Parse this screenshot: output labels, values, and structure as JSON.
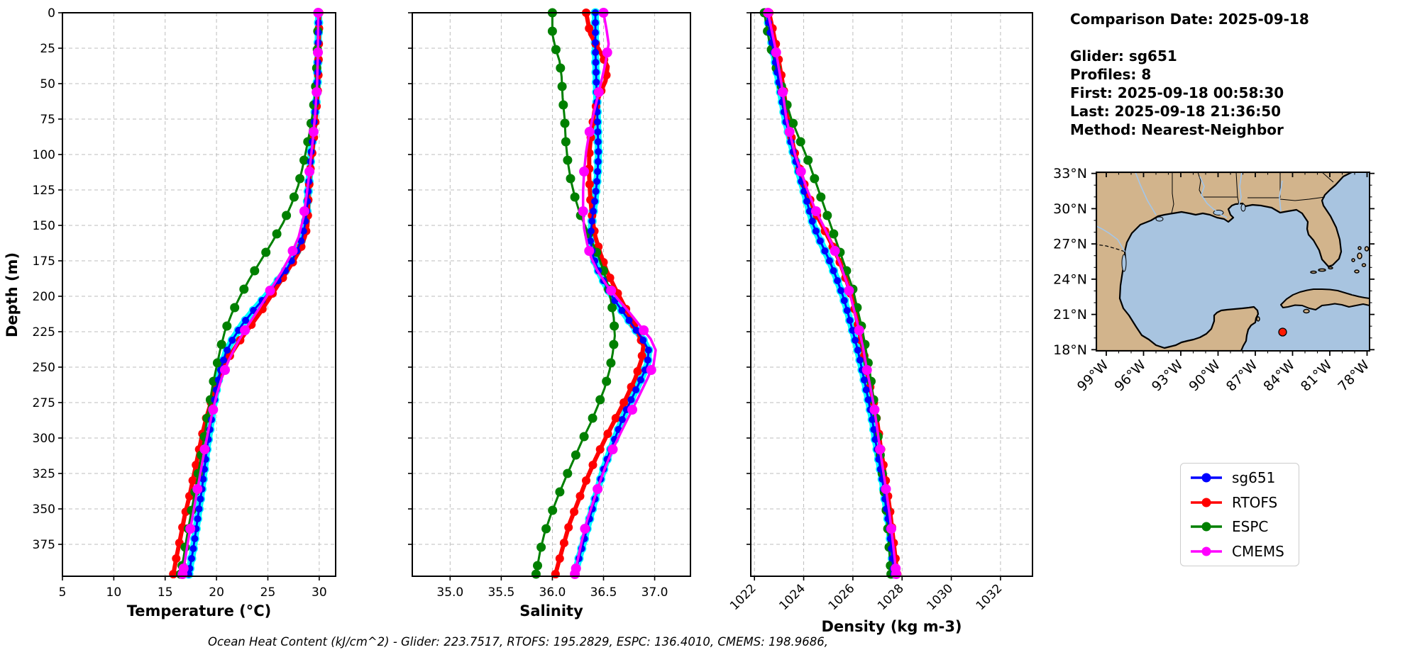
{
  "info_panel": {
    "comparison_date": "Comparison Date: 2025-09-18",
    "glider": "Glider: sg651",
    "profiles": "Profiles: 8",
    "first": "First: 2025-09-18 00:58:30",
    "last": "Last: 2025-09-18 21:36:50",
    "method": "Method: Nearest-Neighbor"
  },
  "footer": {
    "ohc_line": "Ocean Heat Content (kJ/cm^2) - Glider: 223.7517,  RTOFS: 195.2829,  ESPC: 136.4010,  CMEMS: 198.9686,"
  },
  "legend": {
    "items": [
      {
        "label": "sg651",
        "color": "#0000ff"
      },
      {
        "label": "RTOFS",
        "color": "#ff0000"
      },
      {
        "label": "ESPC",
        "color": "#008000"
      },
      {
        "label": "CMEMS",
        "color": "#ff00ff"
      }
    ]
  },
  "chart_data": [
    {
      "type": "line",
      "xlabel": "Temperature (°C)",
      "ylabel": "Depth (m)",
      "xlim": [
        5,
        31.6
      ],
      "ylim": [
        0,
        397.5
      ],
      "y_inverted": true,
      "grid": true,
      "xticks": [
        5,
        10,
        15,
        20,
        25,
        30
      ],
      "yticks": [
        0,
        25,
        50,
        75,
        100,
        125,
        150,
        175,
        200,
        225,
        250,
        275,
        300,
        325,
        350,
        375
      ],
      "series": [
        {
          "name": "sg651",
          "color": "#0000ff",
          "halo_color": "#00ffff",
          "depths": [
            0,
            20,
            40,
            55,
            70,
            85,
            100,
            115,
            128,
            140,
            150,
            160,
            170,
            180,
            190,
            200,
            210,
            220,
            230,
            240,
            252,
            265,
            278,
            292,
            306,
            320,
            335,
            350,
            365,
            380,
            396
          ],
          "values": [
            29.95,
            29.9,
            29.85,
            29.8,
            29.6,
            29.4,
            29.2,
            29.05,
            28.9,
            28.8,
            28.6,
            28.3,
            27.7,
            26.9,
            25.9,
            24.8,
            23.6,
            22.5,
            21.6,
            20.9,
            20.4,
            20.0,
            19.7,
            19.4,
            19.1,
            18.85,
            18.6,
            18.3,
            18.0,
            17.7,
            17.3
          ]
        },
        {
          "name": "RTOFS",
          "color": "#ff0000",
          "depths": [
            0,
            25,
            50,
            70,
            90,
            110,
            128,
            142,
            150,
            158,
            166,
            174,
            182,
            192,
            202,
            212,
            222,
            232,
            242,
            252,
            262,
            274,
            286,
            298,
            312,
            326,
            340,
            355,
            370,
            384,
            396
          ],
          "values": [
            30.0,
            29.95,
            29.9,
            29.7,
            29.45,
            29.15,
            28.95,
            28.9,
            28.85,
            28.6,
            28.2,
            27.6,
            26.9,
            26.0,
            25.1,
            24.2,
            23.2,
            22.2,
            21.3,
            20.6,
            20.0,
            19.5,
            19.0,
            18.6,
            18.2,
            17.8,
            17.4,
            16.9,
            16.5,
            16.1,
            15.8
          ]
        },
        {
          "name": "ESPC",
          "color": "#008000",
          "depths": [
            0,
            20,
            40,
            58,
            72,
            85,
            98,
            110,
            122,
            135,
            148,
            162,
            175,
            188,
            200,
            212,
            225,
            238,
            250,
            262,
            275,
            288,
            300,
            315,
            332,
            350,
            368,
            384,
            396
          ],
          "values": [
            29.9,
            29.85,
            29.75,
            29.6,
            29.35,
            29.05,
            28.7,
            28.35,
            27.95,
            27.3,
            26.5,
            25.4,
            24.3,
            23.2,
            22.3,
            21.5,
            20.8,
            20.35,
            20.0,
            19.65,
            19.35,
            19.05,
            18.8,
            18.45,
            18.05,
            17.6,
            17.15,
            16.8,
            16.5
          ]
        },
        {
          "name": "CMEMS",
          "color": "#ff00ff",
          "depths": [
            0,
            25,
            50,
            72,
            92,
            112,
            130,
            145,
            158,
            170,
            182,
            195,
            208,
            220,
            232,
            245,
            258,
            270,
            282,
            295,
            310,
            326,
            342,
            358,
            374,
            388,
            396
          ],
          "values": [
            29.9,
            29.88,
            29.8,
            29.6,
            29.35,
            29.05,
            28.75,
            28.45,
            28.0,
            27.3,
            26.4,
            25.3,
            24.2,
            23.1,
            22.1,
            21.2,
            20.5,
            20.0,
            19.6,
            19.2,
            18.8,
            18.4,
            18.0,
            17.6,
            17.2,
            16.9,
            16.7
          ]
        }
      ]
    },
    {
      "type": "line",
      "xlabel": "Salinity",
      "ylabel": "Depth (m)",
      "xlim": [
        34.63,
        37.35
      ],
      "ylim": [
        0,
        397.5
      ],
      "y_inverted": true,
      "grid": true,
      "xticks": [
        35.0,
        35.5,
        36.0,
        36.5,
        37.0
      ],
      "yticks": [
        0,
        25,
        50,
        75,
        100,
        125,
        150,
        175,
        200,
        225,
        250,
        275,
        300,
        325,
        350,
        375
      ],
      "series": [
        {
          "name": "sg651",
          "color": "#0000ff",
          "halo_color": "#00ffff",
          "depths": [
            0,
            25,
            50,
            75,
            100,
            115,
            130,
            145,
            160,
            172,
            182,
            192,
            202,
            212,
            222,
            230,
            238,
            248,
            258,
            270,
            282,
            295,
            308,
            320,
            332,
            345,
            358,
            372,
            385,
            396
          ],
          "values": [
            36.42,
            36.42,
            36.43,
            36.44,
            36.45,
            36.44,
            36.42,
            36.39,
            36.37,
            36.4,
            36.45,
            36.52,
            36.6,
            36.7,
            36.8,
            36.88,
            36.94,
            36.93,
            36.87,
            36.79,
            36.71,
            36.64,
            36.57,
            36.51,
            36.46,
            36.41,
            36.36,
            36.31,
            36.26,
            36.22
          ]
        },
        {
          "name": "RTOFS",
          "color": "#ff0000",
          "depths": [
            0,
            15,
            28,
            38,
            48,
            58,
            70,
            85,
            100,
            115,
            130,
            145,
            158,
            170,
            182,
            194,
            205,
            216,
            226,
            235,
            245,
            258,
            272,
            286,
            300,
            315,
            330,
            345,
            360,
            375,
            388,
            396
          ],
          "values": [
            36.33,
            36.37,
            36.47,
            36.54,
            36.52,
            36.46,
            36.41,
            36.38,
            36.36,
            36.36,
            36.37,
            36.39,
            36.42,
            36.47,
            36.53,
            36.61,
            36.69,
            36.77,
            36.84,
            36.89,
            36.87,
            36.81,
            36.72,
            36.62,
            36.52,
            36.42,
            36.33,
            36.25,
            36.17,
            36.11,
            36.06,
            36.03
          ]
        },
        {
          "name": "ESPC",
          "color": "#008000",
          "depths": [
            0,
            15,
            25,
            34,
            45,
            60,
            75,
            90,
            105,
            118,
            130,
            142,
            152,
            162,
            172,
            182,
            192,
            202,
            215,
            228,
            240,
            252,
            265,
            278,
            290,
            302,
            315,
            328,
            342,
            355,
            368,
            380,
            396
          ],
          "values": [
            36.0,
            36.0,
            36.03,
            36.07,
            36.09,
            36.1,
            36.12,
            36.13,
            36.15,
            36.18,
            36.22,
            36.27,
            36.33,
            36.39,
            36.45,
            36.5,
            36.54,
            36.57,
            36.6,
            36.61,
            36.59,
            36.56,
            36.51,
            36.44,
            36.37,
            36.29,
            36.21,
            36.13,
            36.05,
            35.98,
            35.92,
            35.88,
            35.84
          ]
        },
        {
          "name": "CMEMS",
          "color": "#ff00ff",
          "depths": [
            0,
            12,
            22,
            35,
            48,
            60,
            72,
            85,
            98,
            112,
            126,
            140,
            152,
            163,
            173,
            182,
            192,
            202,
            212,
            222,
            230,
            238,
            248,
            258,
            270,
            283,
            296,
            308,
            320,
            332,
            345,
            358,
            372,
            385,
            396
          ],
          "values": [
            36.5,
            36.53,
            36.55,
            36.52,
            36.48,
            36.44,
            36.4,
            36.36,
            36.33,
            36.31,
            36.3,
            36.3,
            36.31,
            36.34,
            36.38,
            36.44,
            36.53,
            36.64,
            36.76,
            36.87,
            36.96,
            37.01,
            36.99,
            36.93,
            36.85,
            36.76,
            36.67,
            36.59,
            36.52,
            36.46,
            36.4,
            36.34,
            36.29,
            36.25,
            36.22
          ]
        }
      ]
    },
    {
      "type": "line",
      "xlabel": "Density (kg m-3)",
      "ylabel": "Depth (m)",
      "xlim": [
        1021.85,
        1033.3
      ],
      "ylim": [
        0,
        397.5
      ],
      "y_inverted": true,
      "grid": true,
      "xticks": [
        1022,
        1024,
        1026,
        1028,
        1030,
        1032
      ],
      "yticks": [
        0,
        25,
        50,
        75,
        100,
        125,
        150,
        175,
        200,
        225,
        250,
        275,
        300,
        325,
        350,
        375
      ],
      "series": [
        {
          "name": "sg651",
          "color": "#0000ff",
          "halo_color": "#00ffff",
          "depths": [
            0,
            25,
            50,
            75,
            100,
            125,
            150,
            162,
            175,
            188,
            200,
            212,
            225,
            238,
            250,
            262,
            275,
            288,
            300,
            315,
            330,
            345,
            360,
            375,
            388,
            396
          ],
          "values": [
            1022.5,
            1022.75,
            1023.0,
            1023.25,
            1023.6,
            1024.0,
            1024.4,
            1024.7,
            1025.05,
            1025.35,
            1025.6,
            1025.8,
            1026.0,
            1026.2,
            1026.35,
            1026.5,
            1026.65,
            1026.8,
            1026.9,
            1027.05,
            1027.2,
            1027.32,
            1027.45,
            1027.55,
            1027.62,
            1027.66
          ]
        },
        {
          "name": "RTOFS",
          "color": "#ff0000",
          "depths": [
            0,
            25,
            50,
            75,
            100,
            125,
            140,
            150,
            162,
            175,
            188,
            200,
            215,
            230,
            245,
            260,
            275,
            290,
            305,
            320,
            335,
            350,
            365,
            380,
            396
          ],
          "values": [
            1022.6,
            1022.9,
            1023.15,
            1023.35,
            1023.65,
            1024.1,
            1024.45,
            1024.75,
            1025.1,
            1025.45,
            1025.72,
            1025.95,
            1026.15,
            1026.32,
            1026.5,
            1026.65,
            1026.85,
            1027.0,
            1027.12,
            1027.25,
            1027.38,
            1027.5,
            1027.6,
            1027.7,
            1027.8
          ]
        },
        {
          "name": "ESPC",
          "color": "#008000",
          "depths": [
            0,
            20,
            40,
            58,
            75,
            90,
            105,
            120,
            135,
            150,
            165,
            180,
            195,
            210,
            225,
            240,
            255,
            270,
            285,
            300,
            315,
            332,
            350,
            368,
            384,
            396
          ],
          "values": [
            1022.4,
            1022.6,
            1022.9,
            1023.2,
            1023.5,
            1023.85,
            1024.2,
            1024.5,
            1024.8,
            1025.1,
            1025.4,
            1025.7,
            1026.0,
            1026.2,
            1026.4,
            1026.55,
            1026.7,
            1026.82,
            1026.93,
            1027.03,
            1027.13,
            1027.24,
            1027.35,
            1027.44,
            1027.5,
            1027.55
          ]
        },
        {
          "name": "CMEMS",
          "color": "#ff00ff",
          "depths": [
            0,
            25,
            50,
            75,
            100,
            125,
            140,
            152,
            165,
            178,
            192,
            205,
            220,
            235,
            250,
            265,
            280,
            295,
            310,
            325,
            340,
            355,
            370,
            385,
            396
          ],
          "values": [
            1022.55,
            1022.85,
            1023.1,
            1023.3,
            1023.65,
            1024.15,
            1024.5,
            1024.85,
            1025.2,
            1025.5,
            1025.78,
            1025.98,
            1026.2,
            1026.4,
            1026.55,
            1026.72,
            1026.88,
            1027.0,
            1027.12,
            1027.25,
            1027.38,
            1027.5,
            1027.6,
            1027.7,
            1027.76
          ]
        }
      ]
    },
    {
      "type": "map",
      "region": "Gulf of Mexico",
      "lat_tick_values": [
        33,
        30,
        27,
        24,
        21,
        18
      ],
      "lat_ticks": [
        "33°N",
        "30°N",
        "27°N",
        "24°N",
        "21°N",
        "18°N"
      ],
      "lon_tick_values": [
        99,
        96,
        93,
        90,
        87,
        84,
        81,
        78
      ],
      "lon_ticks": [
        "99°W",
        "96°W",
        "93°W",
        "90°W",
        "87°W",
        "84°W",
        "81°W",
        "78°W"
      ],
      "marker": {
        "name": "glider-location",
        "lon_w": 84.8,
        "lat_n": 19.5,
        "color": "#ff1a00"
      },
      "land_color": "#d2b48c",
      "ocean_color": "#a8c4e0",
      "river_color": "#a3c6ea",
      "coast_color": "#000000"
    }
  ]
}
